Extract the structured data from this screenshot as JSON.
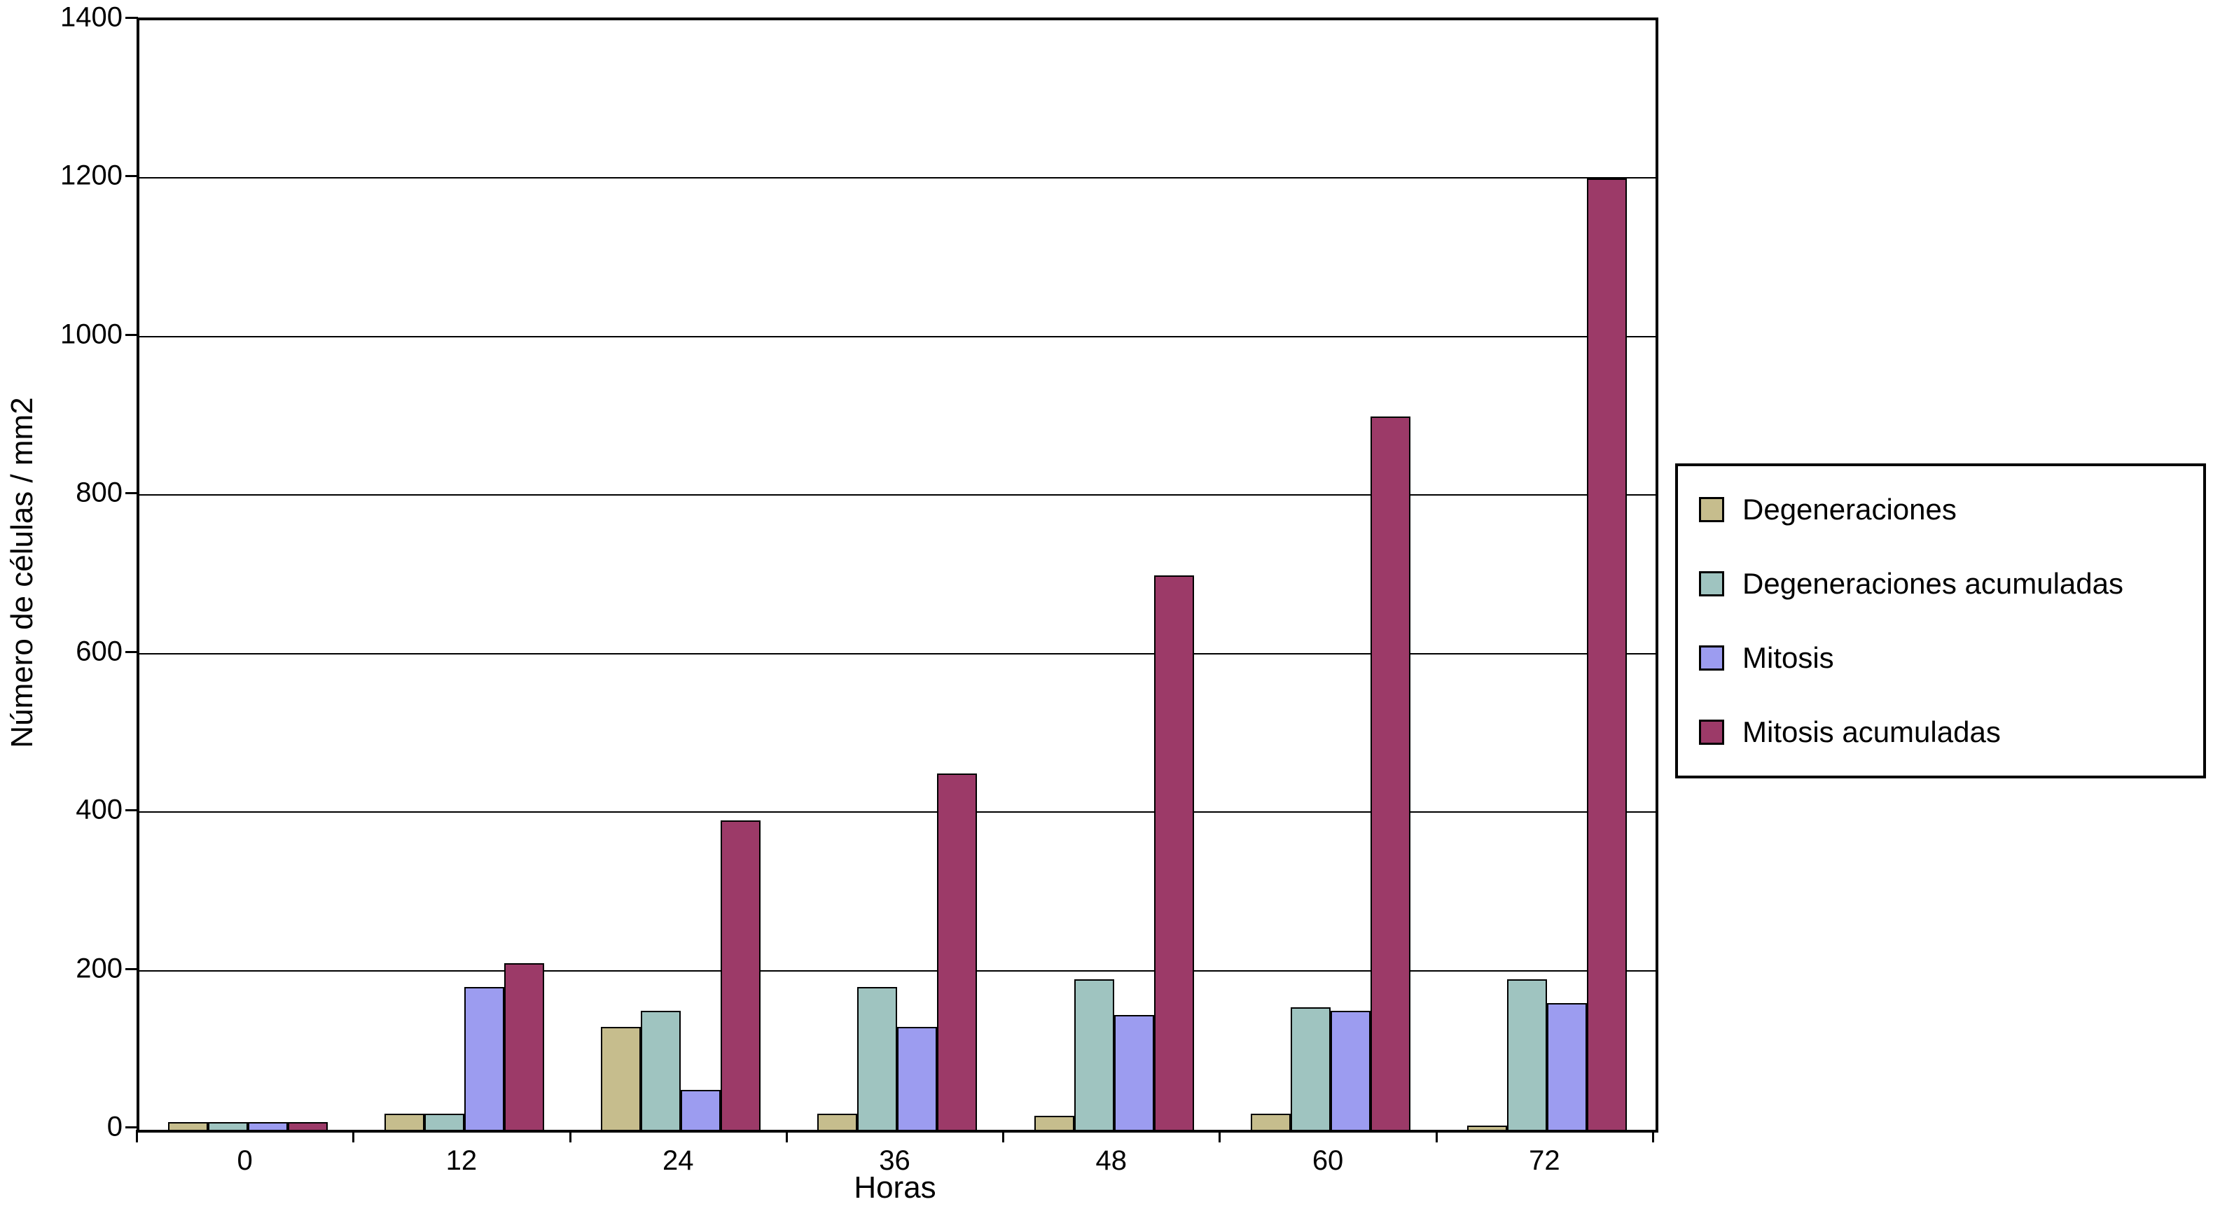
{
  "chart_data": {
    "type": "bar",
    "title": "",
    "xlabel": "Horas",
    "ylabel": "Número de células / mm2",
    "ylim": [
      0,
      1400
    ],
    "yticks": [
      0,
      200,
      400,
      600,
      800,
      1000,
      1200,
      1400
    ],
    "categories": [
      "0",
      "12",
      "24",
      "36",
      "48",
      "60",
      "72"
    ],
    "grid": true,
    "legend_position": "right",
    "series": [
      {
        "name": "Degeneraciones",
        "color": "#c6bd8d",
        "values": [
          10,
          20,
          130,
          20,
          18,
          20,
          5
        ]
      },
      {
        "name": "Degeneraciones acumuladas",
        "color": "#9fc4c0",
        "values": [
          10,
          20,
          150,
          180,
          190,
          155,
          190
        ]
      },
      {
        "name": "Mitosis",
        "color": "#9c9cf0",
        "values": [
          10,
          180,
          50,
          130,
          145,
          150,
          160
        ]
      },
      {
        "name": "Mitosis acumuladas",
        "color": "#9c3a68",
        "values": [
          10,
          210,
          390,
          450,
          700,
          900,
          1200
        ]
      }
    ]
  }
}
